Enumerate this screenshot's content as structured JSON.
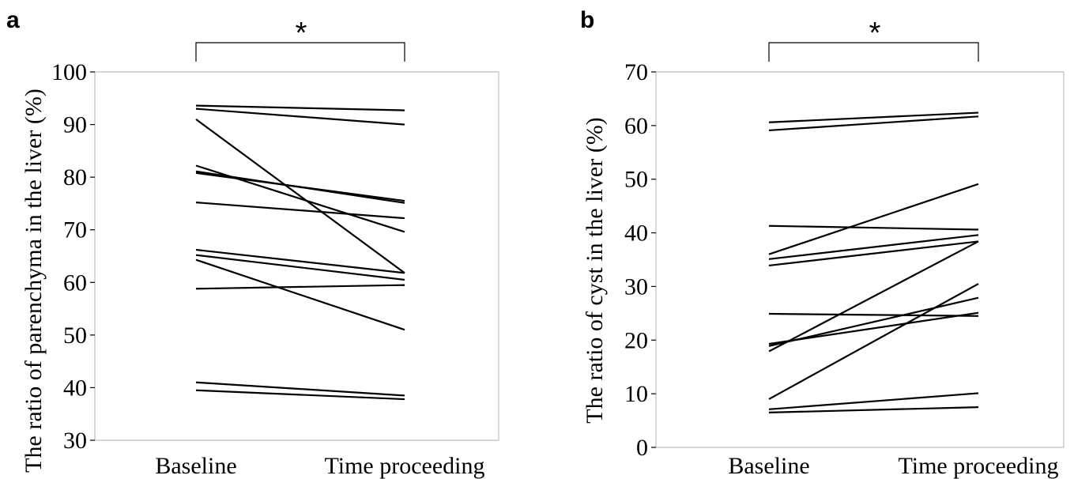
{
  "chart_data": [
    {
      "type": "line",
      "panel_label": "a",
      "title": "",
      "xlabel": "",
      "ylabel": "The ratio of parenchyma in the liver (%)",
      "categories": [
        "Baseline",
        "Time proceeding"
      ],
      "ylim": [
        30,
        100
      ],
      "yticks": [
        30,
        40,
        50,
        60,
        70,
        80,
        90,
        100
      ],
      "significance": "*",
      "grid": false,
      "series": [
        {
          "values": [
            93.6,
            92.7
          ]
        },
        {
          "values": [
            93.0,
            90.0
          ]
        },
        {
          "values": [
            91.0,
            61.8
          ]
        },
        {
          "values": [
            82.2,
            69.6
          ]
        },
        {
          "values": [
            81.1,
            75.1
          ]
        },
        {
          "values": [
            80.8,
            75.5
          ]
        },
        {
          "values": [
            75.2,
            72.2
          ]
        },
        {
          "values": [
            66.2,
            61.8
          ]
        },
        {
          "values": [
            65.2,
            60.5
          ]
        },
        {
          "values": [
            64.3,
            51.0
          ]
        },
        {
          "values": [
            58.8,
            59.5
          ]
        },
        {
          "values": [
            41.0,
            38.5
          ]
        },
        {
          "values": [
            39.5,
            37.8
          ]
        }
      ]
    },
    {
      "type": "line",
      "panel_label": "b",
      "title": "",
      "xlabel": "",
      "ylabel": "The ratio of cyst in the liver (%)",
      "categories": [
        "Baseline",
        "Time proceeding"
      ],
      "ylim": [
        0,
        70
      ],
      "yticks": [
        0,
        10,
        20,
        30,
        40,
        50,
        60,
        70
      ],
      "significance": "*",
      "grid": false,
      "series": [
        {
          "values": [
            60.6,
            62.4
          ]
        },
        {
          "values": [
            59.1,
            61.7
          ]
        },
        {
          "values": [
            41.3,
            40.6
          ]
        },
        {
          "values": [
            36.0,
            49.1
          ]
        },
        {
          "values": [
            35.1,
            39.6
          ]
        },
        {
          "values": [
            33.9,
            38.4
          ]
        },
        {
          "values": [
            24.9,
            24.5
          ]
        },
        {
          "values": [
            19.3,
            25.1
          ]
        },
        {
          "values": [
            18.9,
            27.9
          ]
        },
        {
          "values": [
            17.9,
            38.4
          ]
        },
        {
          "values": [
            9.0,
            30.5
          ]
        },
        {
          "values": [
            7.1,
            10.1
          ]
        },
        {
          "values": [
            6.5,
            7.5
          ]
        }
      ]
    }
  ]
}
